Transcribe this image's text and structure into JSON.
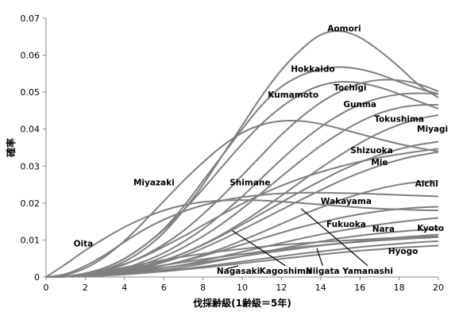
{
  "chart_data": {
    "type": "line",
    "xlabel": "伐採齢級(1齢級＝5年)",
    "ylabel": "確率",
    "xlim": [
      0,
      20
    ],
    "ylim": [
      0,
      0.07
    ],
    "x_ticks": [
      "0",
      "2",
      "4",
      "6",
      "8",
      "10",
      "12",
      "14",
      "16",
      "18",
      "20"
    ],
    "y_ticks": [
      "0",
      "0.01",
      "0.02",
      "0.03",
      "0.04",
      "0.05",
      "0.06",
      "0.07"
    ],
    "grid": false,
    "legend": "none",
    "line_color": "#7f7f7f",
    "x": [
      0,
      1,
      2,
      3,
      4,
      5,
      6,
      7,
      8,
      9,
      10,
      11,
      12,
      13,
      14,
      15,
      16,
      17,
      18,
      19,
      20
    ],
    "series": [
      {
        "name": "Aomori",
        "values": [
          0,
          0.0002,
          0.0008,
          0.002,
          0.0042,
          0.0075,
          0.012,
          0.018,
          0.025,
          0.033,
          0.041,
          0.049,
          0.056,
          0.0615,
          0.0655,
          0.0665,
          0.0648,
          0.0612,
          0.0568,
          0.052,
          0.0485
        ]
      },
      {
        "name": "Hokkaido",
        "values": [
          0,
          0.0002,
          0.001,
          0.0025,
          0.005,
          0.0085,
          0.013,
          0.019,
          0.026,
          0.033,
          0.04,
          0.0465,
          0.0515,
          0.0545,
          0.0562,
          0.0568,
          0.0562,
          0.0548,
          0.0528,
          0.051,
          0.0495
        ]
      },
      {
        "name": "Kumamoto",
        "values": [
          0,
          0.0002,
          0.001,
          0.0025,
          0.005,
          0.0085,
          0.0128,
          0.018,
          0.0238,
          0.03,
          0.036,
          0.0415,
          0.046,
          0.0495,
          0.0518,
          0.0528,
          0.0525,
          0.0513,
          0.0495,
          0.0475,
          0.0455
        ]
      },
      {
        "name": "Tochigi",
        "values": [
          0,
          0.0002,
          0.0008,
          0.0018,
          0.0034,
          0.0058,
          0.0088,
          0.0125,
          0.017,
          0.022,
          0.0275,
          0.033,
          0.0385,
          0.0432,
          0.0472,
          0.0502,
          0.0523,
          0.0533,
          0.0532,
          0.0522,
          0.0502
        ]
      },
      {
        "name": "Gunma",
        "values": [
          0,
          0.0001,
          0.0005,
          0.0012,
          0.0024,
          0.0042,
          0.0065,
          0.0095,
          0.013,
          0.0172,
          0.0218,
          0.0268,
          0.0318,
          0.0365,
          0.0406,
          0.044,
          0.0466,
          0.0484,
          0.0494,
          0.0497,
          0.0495
        ]
      },
      {
        "name": "Tokushima",
        "values": [
          0,
          0.0001,
          0.0004,
          0.001,
          0.002,
          0.0035,
          0.0055,
          0.008,
          0.011,
          0.0145,
          0.0185,
          0.0228,
          0.0272,
          0.0315,
          0.0355,
          0.039,
          0.042,
          0.0443,
          0.0458,
          0.0465,
          0.0466
        ]
      },
      {
        "name": "Miyagi",
        "values": [
          0,
          0.0001,
          0.0003,
          0.0008,
          0.0016,
          0.0028,
          0.0044,
          0.0064,
          0.0088,
          0.0116,
          0.0148,
          0.0183,
          0.022,
          0.0258,
          0.0295,
          0.033,
          0.0362,
          0.039,
          0.0412,
          0.0428,
          0.0438
        ]
      },
      {
        "name": "Miyazaki",
        "values": [
          0,
          0.0006,
          0.0024,
          0.0055,
          0.0098,
          0.015,
          0.0205,
          0.026,
          0.031,
          0.0355,
          0.039,
          0.0412,
          0.0422,
          0.0422,
          0.0414,
          0.0401,
          0.0387,
          0.0373,
          0.036,
          0.0349,
          0.034
        ]
      },
      {
        "name": "Shimane",
        "values": [
          0,
          0.0002,
          0.0008,
          0.0019,
          0.0035,
          0.0056,
          0.0082,
          0.011,
          0.014,
          0.017,
          0.0198,
          0.0224,
          0.0247,
          0.0267,
          0.0284,
          0.0299,
          0.0312,
          0.0323,
          0.0332,
          0.034,
          0.0347
        ]
      },
      {
        "name": "Shizuoka",
        "values": [
          0,
          0.0001,
          0.0004,
          0.0009,
          0.0018,
          0.003,
          0.0045,
          0.0064,
          0.0087,
          0.0113,
          0.0142,
          0.0172,
          0.0202,
          0.0232,
          0.026,
          0.0287,
          0.031,
          0.033,
          0.0346,
          0.0358,
          0.0366
        ]
      },
      {
        "name": "Mie",
        "values": [
          0,
          0.0001,
          0.0003,
          0.0008,
          0.0015,
          0.0026,
          0.004,
          0.0057,
          0.0078,
          0.0102,
          0.0128,
          0.0155,
          0.0182,
          0.0209,
          0.0235,
          0.026,
          0.0282,
          0.0301,
          0.0317,
          0.0329,
          0.0338
        ]
      },
      {
        "name": "Aichi",
        "values": [
          0,
          0.0008,
          0.003,
          0.006,
          0.0095,
          0.0128,
          0.0155,
          0.0177,
          0.0194,
          0.0207,
          0.0216,
          0.0222,
          0.0226,
          0.0228,
          0.0228,
          0.0227,
          0.0226,
          0.0224,
          0.0222,
          0.022,
          0.0218
        ]
      },
      {
        "name": "Wakayama",
        "values": [
          0,
          0.0001,
          0.0002,
          0.0006,
          0.0012,
          0.002,
          0.0031,
          0.0044,
          0.006,
          0.0078,
          0.0099,
          0.0121,
          0.0144,
          0.0167,
          0.0188,
          0.0208,
          0.0225,
          0.0239,
          0.025,
          0.0257,
          0.026
        ]
      },
      {
        "name": "Oita",
        "values": [
          0,
          0.0035,
          0.0072,
          0.0105,
          0.0135,
          0.016,
          0.018,
          0.0194,
          0.0203,
          0.0207,
          0.0208,
          0.0207,
          0.0204,
          0.02,
          0.0196,
          0.0192,
          0.0188,
          0.0185,
          0.0183,
          0.0181,
          0.018
        ]
      },
      {
        "name": "Fukuoka",
        "values": [
          0,
          0.0001,
          0.0003,
          0.0007,
          0.0013,
          0.0021,
          0.0031,
          0.0043,
          0.0057,
          0.0072,
          0.0088,
          0.0104,
          0.012,
          0.0135,
          0.0148,
          0.016,
          0.017,
          0.0178,
          0.0184,
          0.0188,
          0.019
        ]
      },
      {
        "name": "Nara",
        "values": [
          0,
          0.0001,
          0.0002,
          0.0005,
          0.001,
          0.0016,
          0.0024,
          0.0033,
          0.0044,
          0.0056,
          0.0068,
          0.008,
          0.0092,
          0.0104,
          0.0115,
          0.0125,
          0.0134,
          0.0142,
          0.0149,
          0.0155,
          0.016
        ]
      },
      {
        "name": "Kyoto",
        "values": [
          0,
          0.0001,
          0.0002,
          0.0004,
          0.0008,
          0.0013,
          0.0019,
          0.0027,
          0.0036,
          0.0046,
          0.0056,
          0.0067,
          0.0077,
          0.0087,
          0.0096,
          0.0105,
          0.0112,
          0.0118,
          0.0123,
          0.0127,
          0.013
        ]
      },
      {
        "name": "Nagasaki",
        "values": [
          0,
          0.0002,
          0.0008,
          0.0016,
          0.0026,
          0.0036,
          0.0046,
          0.0055,
          0.0063,
          0.007,
          0.0076,
          0.0082,
          0.0087,
          0.0091,
          0.0095,
          0.0098,
          0.0101,
          0.0104,
          0.0106,
          0.0108,
          0.011
        ]
      },
      {
        "name": "Kagoshima",
        "values": [
          0,
          0.0001,
          0.0004,
          0.0009,
          0.0016,
          0.0024,
          0.0032,
          0.004,
          0.0048,
          0.0055,
          0.0062,
          0.0069,
          0.0075,
          0.0081,
          0.0086,
          0.0091,
          0.0095,
          0.0099,
          0.0102,
          0.0105,
          0.0108
        ]
      },
      {
        "name": "Niigata",
        "values": [
          0,
          0.0001,
          0.0003,
          0.0007,
          0.0012,
          0.0018,
          0.0025,
          0.0032,
          0.004,
          0.0048,
          0.0056,
          0.0064,
          0.0071,
          0.0078,
          0.0085,
          0.0091,
          0.0097,
          0.0102,
          0.0107,
          0.0111,
          0.0115
        ]
      },
      {
        "name": "Yamanashi",
        "values": [
          0,
          0.0001,
          0.0002,
          0.0004,
          0.0007,
          0.0011,
          0.0016,
          0.0022,
          0.0028,
          0.0035,
          0.0042,
          0.0049,
          0.0056,
          0.0063,
          0.0069,
          0.0075,
          0.0081,
          0.0086,
          0.009,
          0.0094,
          0.0097
        ]
      },
      {
        "name": "Hyogo",
        "values": [
          0,
          0.0001,
          0.0002,
          0.0004,
          0.0007,
          0.0011,
          0.0015,
          0.002,
          0.0025,
          0.0031,
          0.0037,
          0.0043,
          0.0049,
          0.0055,
          0.0061,
          0.0066,
          0.0071,
          0.0075,
          0.0079,
          0.0082,
          0.0085
        ]
      }
    ],
    "labels": [
      {
        "text": "Aomori",
        "x": 15.2,
        "y": 0.0665,
        "leader": null
      },
      {
        "text": "Hokkaido",
        "x": 13.6,
        "y": 0.0555,
        "leader": null
      },
      {
        "text": "Kumamoto",
        "x": 12.6,
        "y": 0.0485,
        "leader": null
      },
      {
        "text": "Tochigi",
        "x": 15.5,
        "y": 0.0505,
        "leader": null
      },
      {
        "text": "Gunma",
        "x": 16.0,
        "y": 0.046,
        "leader": null
      },
      {
        "text": "Tokushima",
        "x": 18.0,
        "y": 0.042,
        "leader": null
      },
      {
        "text": "Miyagi",
        "x": 19.7,
        "y": 0.0393,
        "leader": null
      },
      {
        "text": "Shizuoka",
        "x": 16.6,
        "y": 0.0335,
        "leader": null
      },
      {
        "text": "Mie",
        "x": 17.0,
        "y": 0.0303,
        "leader": null
      },
      {
        "text": "Aichi",
        "x": 19.4,
        "y": 0.0245,
        "leader": null
      },
      {
        "text": "Miyazaki",
        "x": 5.5,
        "y": 0.0248,
        "leader": null
      },
      {
        "text": "Shimane",
        "x": 10.4,
        "y": 0.0248,
        "leader": null
      },
      {
        "text": "Wakayama",
        "x": 15.3,
        "y": 0.0198,
        "leader": null
      },
      {
        "text": "Oita",
        "x": 1.9,
        "y": 0.0083,
        "leader": null
      },
      {
        "text": "Fukuoka",
        "x": 15.3,
        "y": 0.0135,
        "leader": null
      },
      {
        "text": "Nara",
        "x": 17.2,
        "y": 0.0122,
        "leader": null
      },
      {
        "text": "Kyoto",
        "x": 19.6,
        "y": 0.0125,
        "leader": null
      },
      {
        "text": "Hyogo",
        "x": 18.2,
        "y": 0.0062,
        "leader": null
      },
      {
        "text": "Nagasaki",
        "x": 9.8,
        "y": 0.0009,
        "leader": [
          9.2,
          0.0022
        ]
      },
      {
        "text": "Kagoshima",
        "x": 12.2,
        "y": 0.0009,
        "leader": [
          9.5,
          0.0125
        ]
      },
      {
        "text": "Niigata",
        "x": 14.1,
        "y": 0.0009,
        "leader": [
          13.8,
          0.0078
        ]
      },
      {
        "text": "Yamanashi",
        "x": 16.4,
        "y": 0.0009,
        "leader": [
          13.0,
          0.0185
        ]
      }
    ]
  }
}
